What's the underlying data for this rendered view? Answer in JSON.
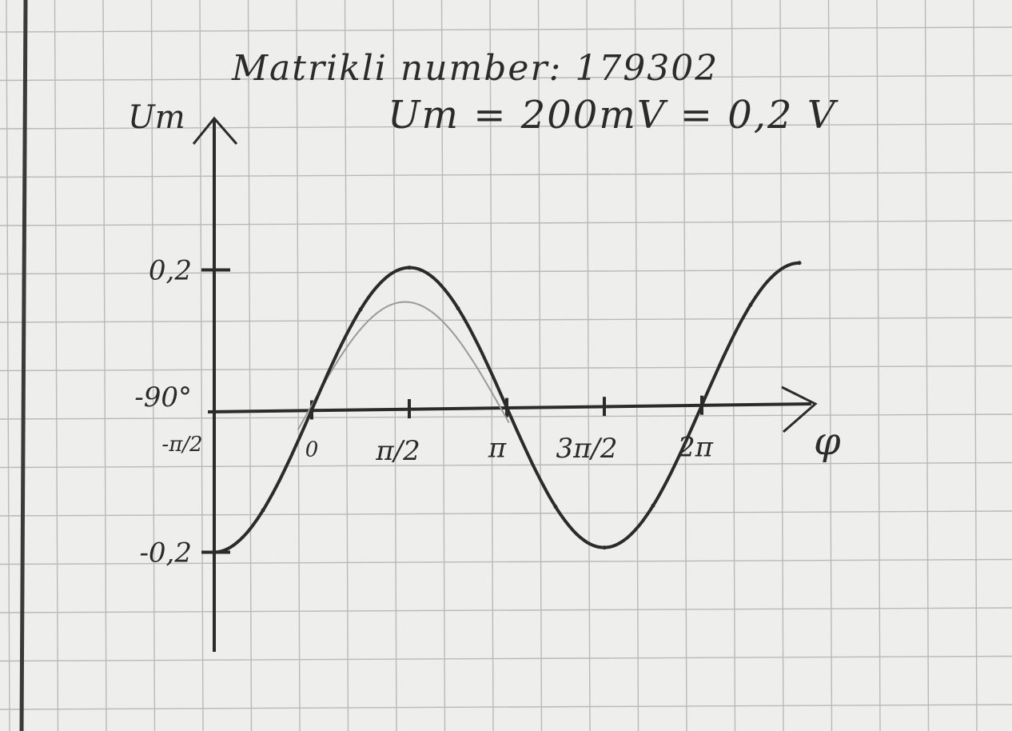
{
  "header": {
    "line1": "Matrikli number: 179302",
    "line2": "Um = 200mV = 0,2 V"
  },
  "colors": {
    "paper": "#eeeeec",
    "grid": "#b9b9b9",
    "ink": "#2b2b2b",
    "pencil": "#9a9a9a"
  },
  "chart_data": {
    "type": "line",
    "title": "",
    "xlabel": "φ",
    "ylabel": "Um",
    "x_tick_labels": [
      {
        "x": -1.5708,
        "label": "-π/2"
      },
      {
        "x": 0,
        "label": "0"
      },
      {
        "x": 1.5708,
        "label": "π/2"
      },
      {
        "x": 3.1416,
        "label": "π"
      },
      {
        "x": 4.7124,
        "label": "3π/2"
      },
      {
        "x": 6.2832,
        "label": "2π"
      }
    ],
    "y_tick_labels": [
      {
        "y": 0.2,
        "label": "0,2"
      },
      {
        "y": 0,
        "label": "-90°"
      },
      {
        "y": -0.2,
        "label": "-0,2"
      }
    ],
    "xlim": [
      -1.5708,
      8.0
    ],
    "ylim": [
      -0.2,
      0.2
    ],
    "grid": true,
    "series": [
      {
        "x": [
          -1.5708,
          -0.7854,
          0,
          0.7854,
          1.5708,
          2.3562,
          3.1416,
          3.927,
          4.7124,
          5.4978,
          6.2832,
          7.0686,
          7.854
        ],
        "values": [
          -0.2,
          -0.1414,
          0,
          0.1414,
          0.2,
          0.1414,
          0,
          -0.1414,
          -0.2,
          -0.1414,
          0,
          0.1414,
          0.2
        ]
      }
    ]
  }
}
